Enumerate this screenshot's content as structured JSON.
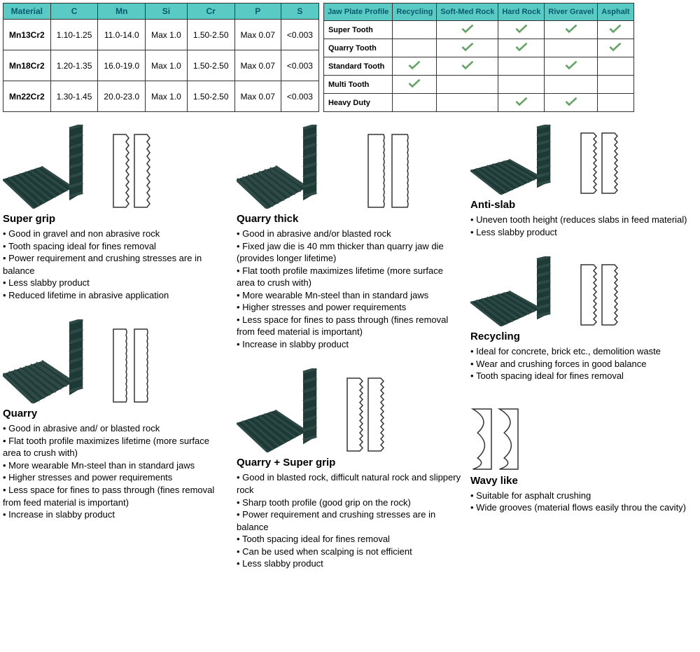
{
  "material_table": {
    "headers": [
      "Material",
      "C",
      "Mn",
      "Si",
      "Cr",
      "P",
      "S"
    ],
    "header_bg": "#59cbc4",
    "header_color": "#0a5a6d",
    "rows": [
      [
        "Mn13Cr2",
        "1.10-1.25",
        "11.0-14.0",
        "Max 1.0",
        "1.50-2.50",
        "Max 0.07",
        "<0.003"
      ],
      [
        "Mn18Cr2",
        "1.20-1.35",
        "16.0-19.0",
        "Max 1.0",
        "1.50-2.50",
        "Max 0.07",
        "<0.003"
      ],
      [
        "Mn22Cr2",
        "1.30-1.45",
        "20.0-23.0",
        "Max 1.0",
        "1.50-2.50",
        "Max 0.07",
        "<0.003"
      ]
    ]
  },
  "profile_table": {
    "headers": [
      "Jaw Plate Profile",
      "Recycling",
      "Soft-Med Rock",
      "Hard Rock",
      "River Gravel",
      "Asphalt"
    ],
    "rows": [
      {
        "label": "Super Tooth",
        "cells": [
          false,
          true,
          true,
          true,
          true
        ]
      },
      {
        "label": "Quarry Tooth",
        "cells": [
          false,
          true,
          true,
          false,
          true
        ]
      },
      {
        "label": "Standard Tooth",
        "cells": [
          true,
          true,
          false,
          true,
          false
        ]
      },
      {
        "label": "Multi Tooth",
        "cells": [
          true,
          false,
          false,
          false,
          false
        ]
      },
      {
        "label": "Heavy Duty",
        "cells": [
          false,
          false,
          true,
          true,
          false
        ]
      }
    ],
    "check_stroke": "#1c4f8a",
    "check_fill": "#8fd05a"
  },
  "jaw_colors": {
    "dark": "#1e3a36",
    "light": "#2f4a46",
    "outline": "#333333",
    "outline_bg": "#ffffff"
  },
  "sections": {
    "super_grip": {
      "title": "Super grip",
      "bullets": [
        "Good in gravel and non abrasive rock",
        "Tooth spacing ideal for fines removal",
        "Power requirement and crushing stresses are in balance",
        "Less slabby product",
        "Reduced lifetime in abrasive application"
      ]
    },
    "quarry": {
      "title": "Quarry",
      "bullets": [
        "Good in abrasive and/ or blasted rock",
        "Flat tooth profile maximizes lifetime (more surface area to crush with)",
        "More wearable Mn-steel than in standard jaws",
        "Higher stresses and power requirements",
        "Less space for fines to pass through (fines removal from feed material is important)",
        "Increase in slabby product"
      ]
    },
    "quarry_thick": {
      "title": "Quarry thick",
      "bullets": [
        "Good in abrasive and/or blasted rock",
        "Fixed jaw die is 40 mm thicker than quarry jaw die (provides longer lifetime)",
        "Flat tooth profile maximizes lifetime (more surface area to crush with)",
        "More wearable Mn-steel than in standard jaws",
        "Higher stresses and power requirements",
        "Less space for fines to pass through (fines removal from feed material is important)",
        "Increase in slabby product"
      ]
    },
    "quarry_super": {
      "title": "Quarry + Super grip",
      "bullets": [
        "Good in blasted rock, difficult natural rock and slippery rock",
        "Sharp tooth profile (good grip on the rock)",
        "Power requirement and crushing stresses are in balance",
        "Tooth spacing ideal for fines removal",
        "Can be used when scalping is not efficient",
        "Less slabby product"
      ]
    },
    "anti_slab": {
      "title": "Anti-slab",
      "bullets": [
        "Uneven tooth height (reduces slabs in feed material)",
        "Less slabby product"
      ]
    },
    "recycling": {
      "title": "Recycling",
      "bullets": [
        "Ideal for concrete, brick etc., demolition waste",
        "Wear and crushing forces in good balance",
        "Tooth spacing ideal for fines removal"
      ]
    },
    "wavy_like": {
      "title": "Wavy like",
      "bullets": [
        "Suitable for asphalt crushing",
        "Wide grooves (material flows easily throu the cavity)"
      ]
    }
  }
}
